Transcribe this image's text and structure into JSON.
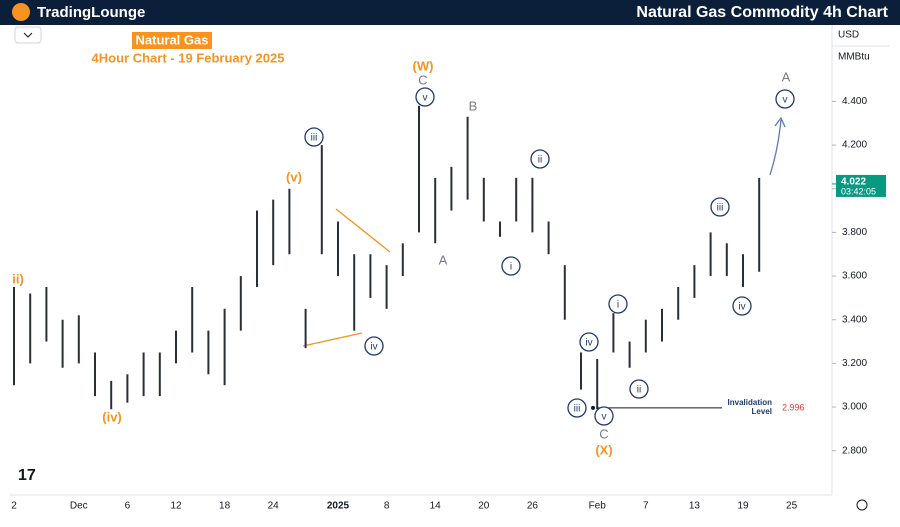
{
  "header": {
    "logo": "TradingLounge",
    "title": "Natural Gas Commodity 4h Chart"
  },
  "chart_data": {
    "type": "range-bar",
    "title": "Natural Gas",
    "subtitle": "4Hour Chart - 19 February 2025",
    "currency": "USD",
    "unit": "MMBtu",
    "categories": [
      "2",
      null,
      null,
      null,
      "Dec",
      null,
      null,
      "6",
      null,
      null,
      "12",
      null,
      null,
      "18",
      null,
      null,
      "24",
      null,
      null,
      null,
      "2025",
      null,
      null,
      "8",
      null,
      null,
      "14",
      null,
      null,
      "20",
      null,
      null,
      "26",
      null,
      null,
      null,
      "Feb",
      null,
      null,
      "7",
      null,
      null,
      "13",
      null,
      null,
      "19",
      null,
      null,
      "25",
      null
    ],
    "high": [
      3.55,
      3.52,
      3.55,
      3.4,
      3.42,
      3.25,
      3.12,
      3.15,
      3.25,
      3.25,
      3.35,
      3.55,
      3.35,
      3.45,
      3.6,
      3.9,
      3.95,
      4.0,
      3.45,
      4.2,
      3.85,
      3.7,
      3.7,
      3.65,
      3.75,
      4.38,
      4.05,
      4.1,
      4.33,
      4.05,
      3.85,
      4.05,
      4.05,
      3.85,
      3.65,
      3.25,
      3.22,
      3.43,
      3.3,
      3.4,
      3.45,
      3.55,
      3.65,
      3.8,
      3.75,
      3.7,
      4.05,
      null,
      null,
      null
    ],
    "low": [
      3.1,
      3.2,
      3.3,
      3.18,
      3.2,
      3.05,
      2.99,
      3.02,
      3.05,
      3.05,
      3.2,
      3.25,
      3.15,
      3.1,
      3.35,
      3.55,
      3.65,
      3.7,
      3.27,
      3.7,
      3.6,
      3.35,
      3.5,
      3.45,
      3.6,
      3.8,
      3.75,
      3.9,
      3.95,
      3.85,
      3.78,
      3.85,
      3.8,
      3.7,
      3.4,
      3.08,
      2.99,
      3.25,
      3.18,
      3.25,
      3.3,
      3.4,
      3.5,
      3.6,
      3.6,
      3.55,
      3.62,
      null,
      null,
      null
    ],
    "color": "#2a2e39",
    "ylim": [
      2.62,
      4.75
    ],
    "yticks": [
      {
        "value": 2.8,
        "label": "2.800"
      },
      {
        "value": 3.0,
        "label": "3.000"
      },
      {
        "value": 3.2,
        "label": "3.200"
      },
      {
        "value": 3.4,
        "label": "3.400"
      },
      {
        "value": 3.6,
        "label": "3.600"
      },
      {
        "value": 3.8,
        "label": "3.800"
      },
      {
        "value": 4.0,
        "label": "4.000"
      },
      {
        "value": 4.2,
        "label": "4.200"
      },
      {
        "value": 4.4,
        "label": "4.400"
      }
    ],
    "last_price": {
      "value": 4.022,
      "label": "4.022",
      "countdown": "03:42:05"
    },
    "invalidation": {
      "label": "Invalidation Level",
      "value": 2.996
    },
    "annotations": [
      "ii)",
      "(iv)",
      "(v)",
      "iii",
      "iv",
      "(W)",
      "C",
      "v",
      "B",
      "A",
      "ii",
      "i",
      "iv",
      "iii",
      "v",
      "C",
      "(X)",
      "i",
      "ii",
      "iii",
      "iv",
      "A",
      "v"
    ]
  }
}
